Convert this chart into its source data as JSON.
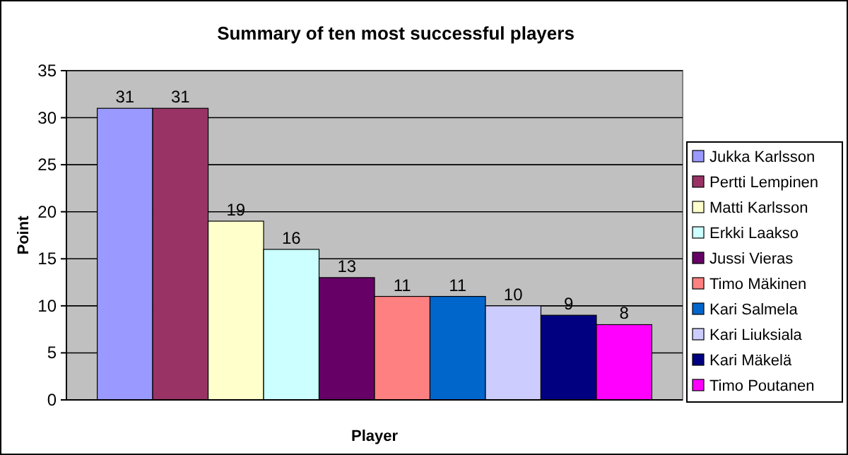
{
  "chart_data": {
    "type": "bar",
    "title": "Summary of ten most successful players",
    "xlabel": "Player",
    "ylabel": "Point",
    "categories": [
      null
    ],
    "ylim": [
      0,
      35
    ],
    "yticks": [
      0,
      5,
      10,
      15,
      20,
      25,
      30,
      35
    ],
    "grid": "y",
    "legend": "right",
    "data_labels": true,
    "series": [
      {
        "name": "Jukka Karlsson",
        "color": "#9999ff",
        "values": [
          31
        ]
      },
      {
        "name": "Pertti Lempinen",
        "color": "#993366",
        "values": [
          31
        ]
      },
      {
        "name": "Matti Karlsson",
        "color": "#ffffcc",
        "values": [
          19
        ]
      },
      {
        "name": "Erkki Laakso",
        "color": "#ccffff",
        "values": [
          16
        ]
      },
      {
        "name": "Jussi Vieras",
        "color": "#660066",
        "values": [
          13
        ]
      },
      {
        "name": "Timo Mäkinen",
        "color": "#ff8080",
        "values": [
          11
        ]
      },
      {
        "name": "Kari Salmela",
        "color": "#0066cc",
        "values": [
          11
        ]
      },
      {
        "name": "Kari Liuksiala",
        "color": "#ccccff",
        "values": [
          10
        ]
      },
      {
        "name": "Kari Mäkelä",
        "color": "#000080",
        "values": [
          9
        ]
      },
      {
        "name": "Timo Poutanen",
        "color": "#ff00ff",
        "values": [
          8
        ]
      }
    ]
  }
}
